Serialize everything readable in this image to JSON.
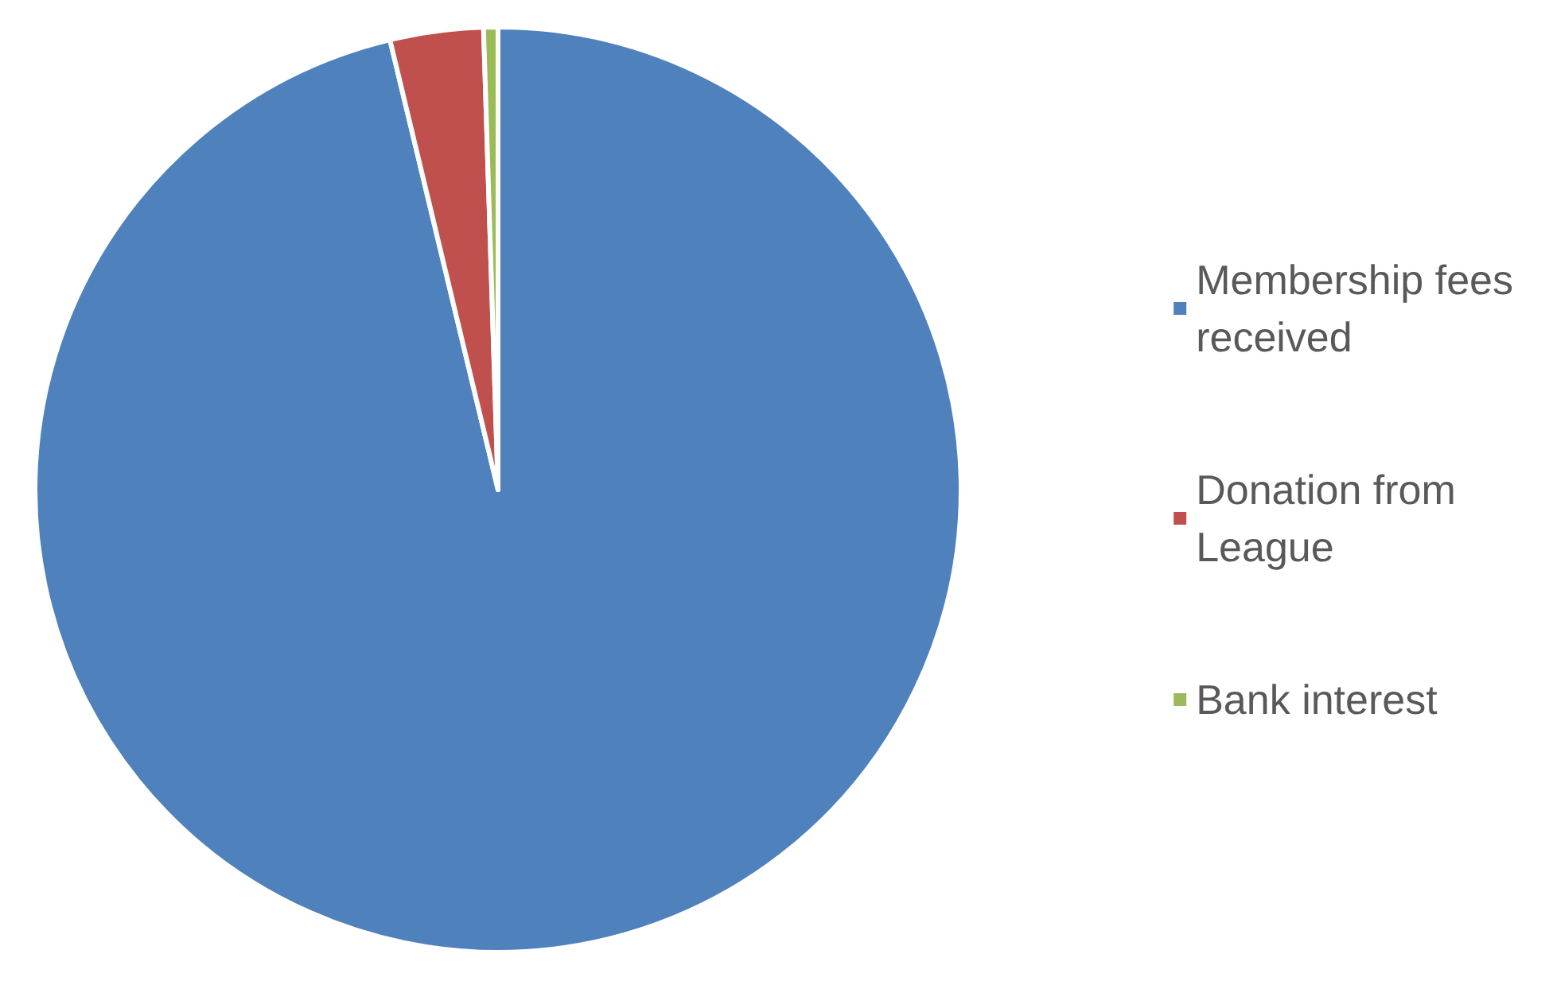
{
  "chart_data": {
    "type": "pie",
    "categories": [
      "Membership fees received",
      "Donation from League",
      "Bank interest"
    ],
    "values": [
      96.25,
      3.25,
      0.5
    ],
    "colors": [
      "#4f81bd",
      "#c0504d",
      "#9bbb59"
    ],
    "legend": "right"
  }
}
